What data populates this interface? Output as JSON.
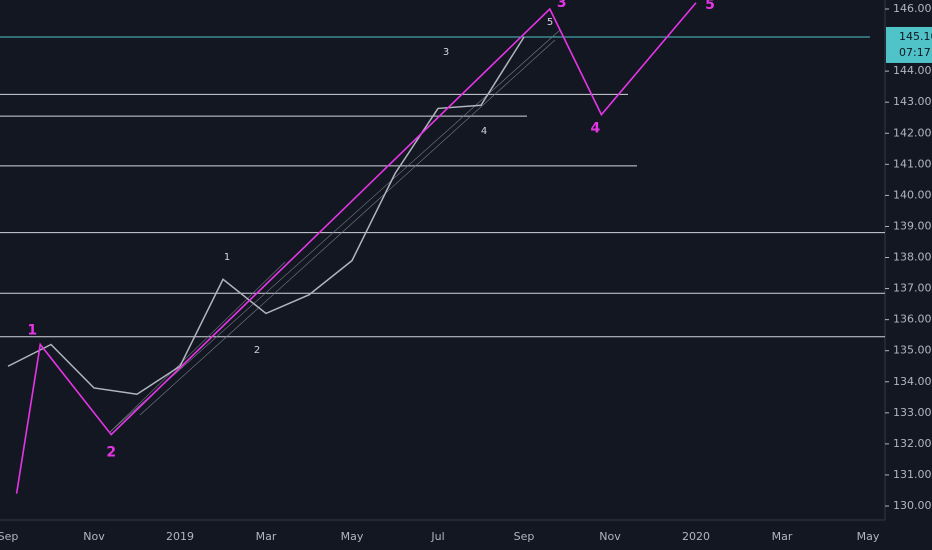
{
  "chart_data": {
    "type": "line",
    "categories": [
      "Sep",
      null,
      "Nov",
      null,
      "2019",
      null,
      "Mar",
      null,
      "May",
      null,
      "Jul",
      null,
      "Sep",
      null,
      "Nov",
      null,
      "2020",
      null,
      "Mar",
      null,
      "May"
    ],
    "series": [
      {
        "color": "#b2b5be",
        "values": [
          134.5,
          135.2,
          133.8,
          133.6,
          134.5,
          137.3,
          136.2,
          136.8,
          137.9,
          140.7,
          142.8,
          142.9,
          145.1,
          null,
          null,
          null,
          null,
          null,
          null,
          null,
          null
        ]
      }
    ],
    "wave": {
      "color": "#e535e5",
      "x": [
        0.2,
        0.75,
        2.4,
        12.6,
        13.8,
        16.0
      ],
      "values": [
        130.4,
        135.2,
        132.3,
        146.0,
        142.6,
        146.2
      ],
      "labels": [
        null,
        "1",
        "2",
        "3",
        "4",
        "5"
      ]
    },
    "subwave_labels": [
      "1",
      "2",
      "3",
      "4",
      "5"
    ],
    "levels": [
      {
        "value": 145.1,
        "color": "#4fc3c7"
      },
      {
        "value": 143.25,
        "color": "#d1d4dc"
      },
      {
        "value": 142.55,
        "color": "#d1d4dc"
      },
      {
        "value": 140.95,
        "color": "#d1d4dc"
      },
      {
        "value": 138.8,
        "color": "#d1d4dc"
      },
      {
        "value": 136.85,
        "color": "#d1d4dc"
      },
      {
        "value": 135.45,
        "color": "#d1d4dc"
      }
    ],
    "ylim": [
      129.55,
      146.29
    ],
    "yticks": [
      {
        "value": 130,
        "label": "130.00"
      },
      {
        "value": 131,
        "label": "131.00"
      },
      {
        "value": 132,
        "label": "132.00"
      },
      {
        "value": 133,
        "label": "133.00"
      },
      {
        "value": 134,
        "label": "134.00"
      },
      {
        "value": 135,
        "label": "135.00"
      },
      {
        "value": 136,
        "label": "136.00"
      },
      {
        "value": 137,
        "label": "137.00"
      },
      {
        "value": 138,
        "label": "138.00"
      },
      {
        "value": 139,
        "label": "139.00"
      },
      {
        "value": 140,
        "label": "140.00"
      },
      {
        "value": 141,
        "label": "141.00"
      },
      {
        "value": 142,
        "label": "142.00"
      },
      {
        "value": 143,
        "label": "143.00"
      },
      {
        "value": 144,
        "label": "144.00"
      },
      {
        "value": 146,
        "label": "146.00"
      }
    ],
    "price_label": {
      "value": 145.1,
      "label": "145.10"
    },
    "countdown": "07:17"
  }
}
